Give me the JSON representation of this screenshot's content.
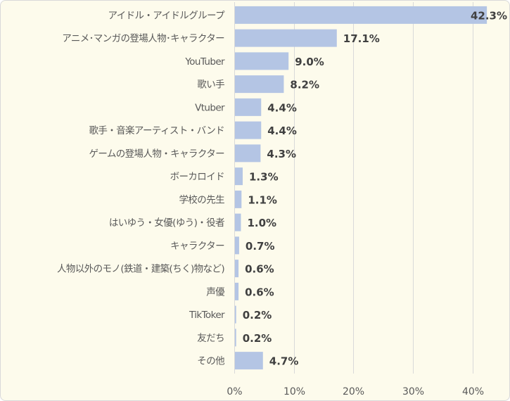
{
  "chart_data": {
    "type": "bar",
    "orientation": "horizontal",
    "categories": [
      "アイドル・アイドルグループ",
      "アニメ･マンガの登場人物･キャラクター",
      "YouTuber",
      "歌い手",
      "Vtuber",
      "歌手・音楽アーティスト・バンド",
      "ゲームの登場人物・キャラクター",
      "ボーカロイド",
      "学校の先生",
      "はいゆう・女優(ゆう)・役者",
      "キャラクター",
      "人物以外のモノ(鉄道・建築(ちく)物など)",
      "声優",
      "TikToker",
      "友だち",
      "その他"
    ],
    "values": [
      42.3,
      17.1,
      9.0,
      8.2,
      4.4,
      4.4,
      4.3,
      1.3,
      1.1,
      1.0,
      0.7,
      0.6,
      0.6,
      0.2,
      0.2,
      4.7
    ],
    "value_labels": [
      "42.3%",
      "17.1%",
      "9.0%",
      "8.2%",
      "4.4%",
      "4.4%",
      "4.3%",
      "1.3%",
      "1.1%",
      "1.0%",
      "0.7%",
      "0.6%",
      "0.6%",
      "0.2%",
      "0.2%",
      "4.7%"
    ],
    "x_ticks": [
      "0%",
      "10%",
      "20%",
      "30%",
      "40%"
    ],
    "x_tick_values": [
      0,
      10,
      20,
      30,
      40
    ],
    "xlim": [
      0,
      45
    ],
    "grid": true,
    "bar_color": "#b4c5e4",
    "grid_color": "#d9d9d9",
    "background_color": "#fdfbec"
  }
}
